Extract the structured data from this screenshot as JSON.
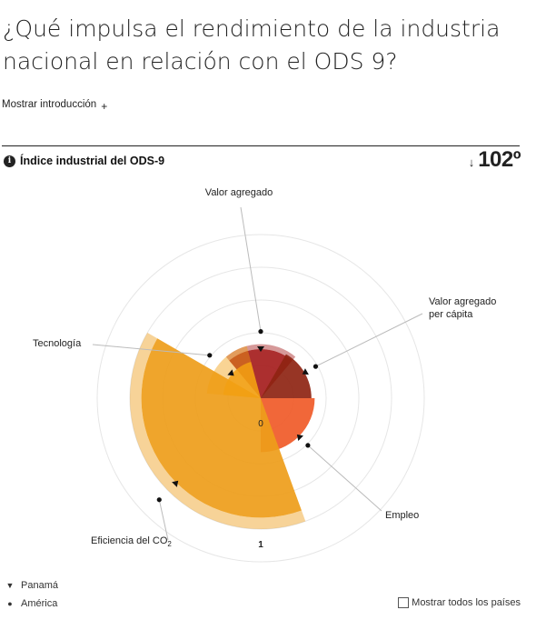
{
  "header": {
    "title": "¿Qué impulsa el rendimiento de la industria nacional en relación con el ODS 9?",
    "intro_toggle": "Mostrar introducción",
    "intro_toggle_icon": "+"
  },
  "index": {
    "info_icon": "i",
    "label": "Índice industrial del ODS-9",
    "rank_arrow": "↓",
    "rank_value": "102º"
  },
  "chart_data": {
    "type": "radar-bar",
    "scale_labels": [
      "0",
      "1"
    ],
    "axes": [
      {
        "label": "Valor agregado",
        "panama": 0.3,
        "america": 0.33,
        "color": "#a51d1d"
      },
      {
        "label": "Valor agregado per cápita",
        "panama": 0.31,
        "america": 0.3,
        "color": "#8e2412"
      },
      {
        "label": "Empleo",
        "panama": 0.33,
        "america": 0.29,
        "color": "#f05a28"
      },
      {
        "label": "Eficiencia del CO2",
        "panama": 0.73,
        "america": 0.8,
        "color": "#ee9d1a"
      },
      {
        "label": "Tecnología",
        "panama": 0.23,
        "america": 0.33,
        "color": "#f2a012"
      }
    ]
  },
  "legend": {
    "panama": "Panamá",
    "america": "América",
    "show_all": "Mostrar todos los países"
  }
}
